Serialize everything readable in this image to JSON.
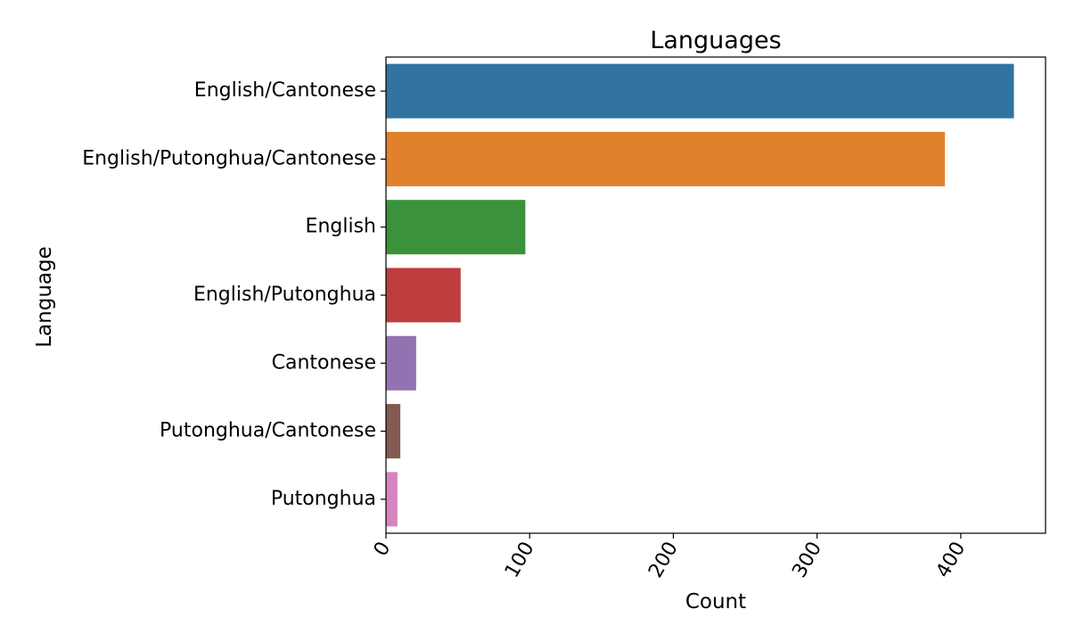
{
  "chart_data": {
    "type": "bar",
    "orientation": "horizontal",
    "title": "Languages",
    "xlabel": "Count",
    "ylabel": "Language",
    "categories": [
      "English/Cantonese",
      "English/Putonghua/Cantonese",
      "English",
      "English/Putonghua",
      "Cantonese",
      "Putonghua/Cantonese",
      "Putonghua"
    ],
    "values": [
      437,
      389,
      97,
      52,
      21,
      10,
      8
    ],
    "colors": [
      "#3274a1",
      "#e1812c",
      "#3a923a",
      "#c03d3e",
      "#9372b2",
      "#845b53",
      "#d684bd"
    ],
    "xlim": [
      0,
      459
    ],
    "xticks": [
      0,
      100,
      200,
      300,
      400
    ],
    "xtick_labels": [
      "0",
      "100",
      "200",
      "300",
      "400"
    ],
    "grid": false,
    "legend": "none"
  }
}
